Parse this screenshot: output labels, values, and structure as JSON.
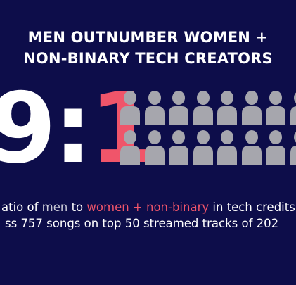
{
  "title": {
    "line1": "MEN OUTNUMBER WOMEN +",
    "line2": "NON-BINARY TECH CREATORS"
  },
  "ratio": {
    "left": "9",
    "separator": ":",
    "right": "1"
  },
  "icons": {
    "name": "person-icon",
    "rows": 2,
    "columns": 8,
    "color": "#a6a6ad"
  },
  "caption": {
    "line1_prefix": "atio of ",
    "line1_men": "men",
    "line1_mid": " to ",
    "line1_women": "women + non-binary",
    "line1_suffix": " in tech credits",
    "line2": "ss 757 songs on top 50 streamed tracks of 202"
  },
  "colors": {
    "background": "#0d0d4a",
    "accent": "#f0556a",
    "text": "#ffffff"
  }
}
